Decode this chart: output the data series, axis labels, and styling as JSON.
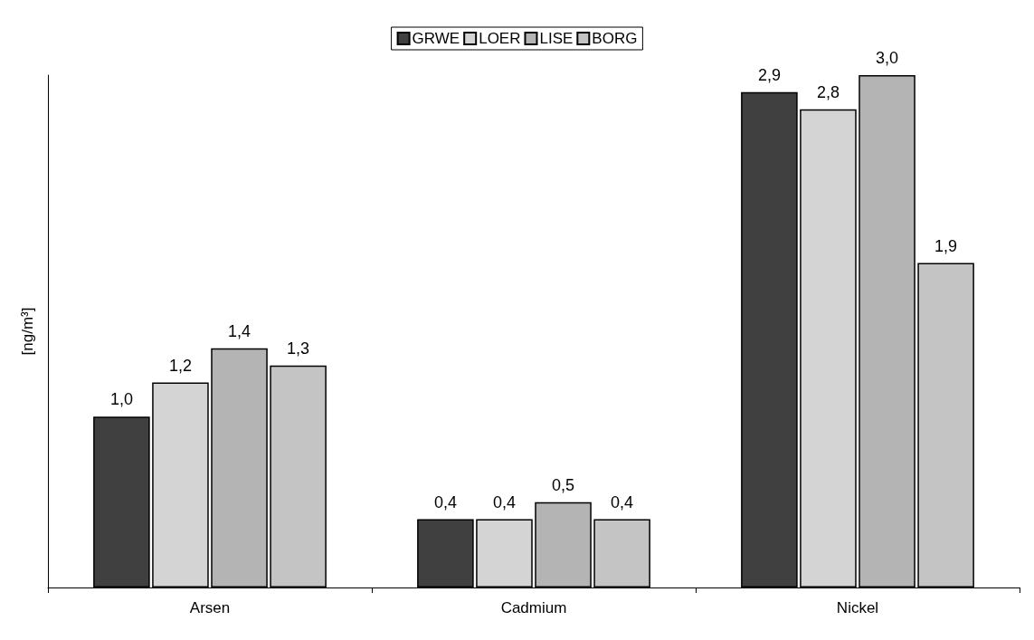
{
  "chart_data": {
    "type": "bar",
    "ylabel": "[ng/m³]",
    "categories": [
      "Arsen",
      "Cadmium",
      "Nickel"
    ],
    "series": [
      {
        "name": "GRWE",
        "color": "#404040",
        "values": [
          1.0,
          0.4,
          2.9
        ],
        "value_labels": [
          "1,0",
          "0,4",
          "2,9"
        ]
      },
      {
        "name": "LOER",
        "color": "#d4d4d4",
        "values": [
          1.2,
          0.4,
          2.8
        ],
        "value_labels": [
          "1,2",
          "0,4",
          "2,8"
        ]
      },
      {
        "name": "LISE",
        "color": "#b4b4b4",
        "values": [
          1.4,
          0.5,
          3.0
        ],
        "value_labels": [
          "1,4",
          "0,5",
          "3,0"
        ]
      },
      {
        "name": "BORG",
        "color": "#c4c4c4",
        "values": [
          1.3,
          0.4,
          1.9
        ],
        "value_labels": [
          "1,3",
          "0,4",
          "1,9"
        ]
      }
    ],
    "grid": false,
    "legend": "top"
  }
}
